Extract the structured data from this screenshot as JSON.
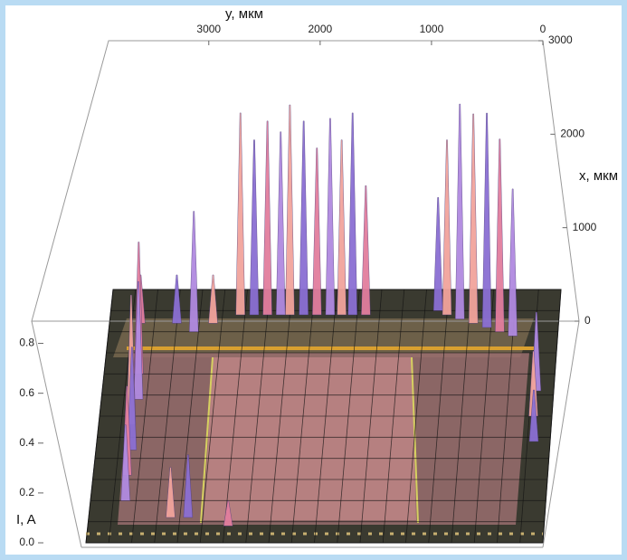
{
  "chart_data": {
    "type": "spikes3d",
    "y_axis_label": "y, мкм",
    "x_axis_label": "x, мкм",
    "z_axis_label": "I, A",
    "ylim": [
      3900,
      0
    ],
    "yticks": [
      3000,
      2000,
      1000,
      0
    ],
    "xlim": [
      0,
      3000
    ],
    "xticks": [
      3000,
      2000,
      1000,
      0
    ],
    "zlim": [
      0,
      0.9
    ],
    "zticks": [
      {
        "value": 0,
        "label": "0.0"
      },
      {
        "value": 0.2,
        "label": "0.2"
      },
      {
        "value": 0.4,
        "label": "0.4"
      },
      {
        "value": 0.6,
        "label": "0.6"
      },
      {
        "value": 0.8,
        "label": "0.8"
      }
    ],
    "colors": [
      "#f2a49c",
      "#8b6fd3",
      "#e27e9e",
      "#b08ae0"
    ],
    "points_y": [
      2770,
      2650,
      2535,
      2420,
      2340,
      2220,
      2105,
      1990,
      1890,
      1795,
      1680,
      3160,
      3000,
      3315,
      3630,
      860,
      740,
      620,
      505,
      390,
      975,
      1055,
      3600,
      3580,
      3620,
      3590,
      3610,
      3600,
      3200,
      3050,
      2700,
      150,
      160,
      140
    ],
    "points_x": [
      2700,
      2700,
      2700,
      2700,
      2700,
      2700,
      2700,
      2700,
      2700,
      2700,
      2700,
      2500,
      2600,
      2600,
      2600,
      2650,
      2600,
      2550,
      2500,
      2450,
      2700,
      2750,
      2000,
      1700,
      1400,
      1100,
      800,
      500,
      300,
      300,
      200,
      1800,
      1500,
      1200
    ],
    "values": [
      0.75,
      0.65,
      0.72,
      0.68,
      0.78,
      0.72,
      0.62,
      0.73,
      0.65,
      0.75,
      0.48,
      0.45,
      0.18,
      0.18,
      0.18,
      0.8,
      0.78,
      0.8,
      0.72,
      0.55,
      0.65,
      0.42,
      0.5,
      0.45,
      0.5,
      0.4,
      0.35,
      0.3,
      0.2,
      0.25,
      0.1,
      0.3,
      0.25,
      0.2
    ]
  }
}
